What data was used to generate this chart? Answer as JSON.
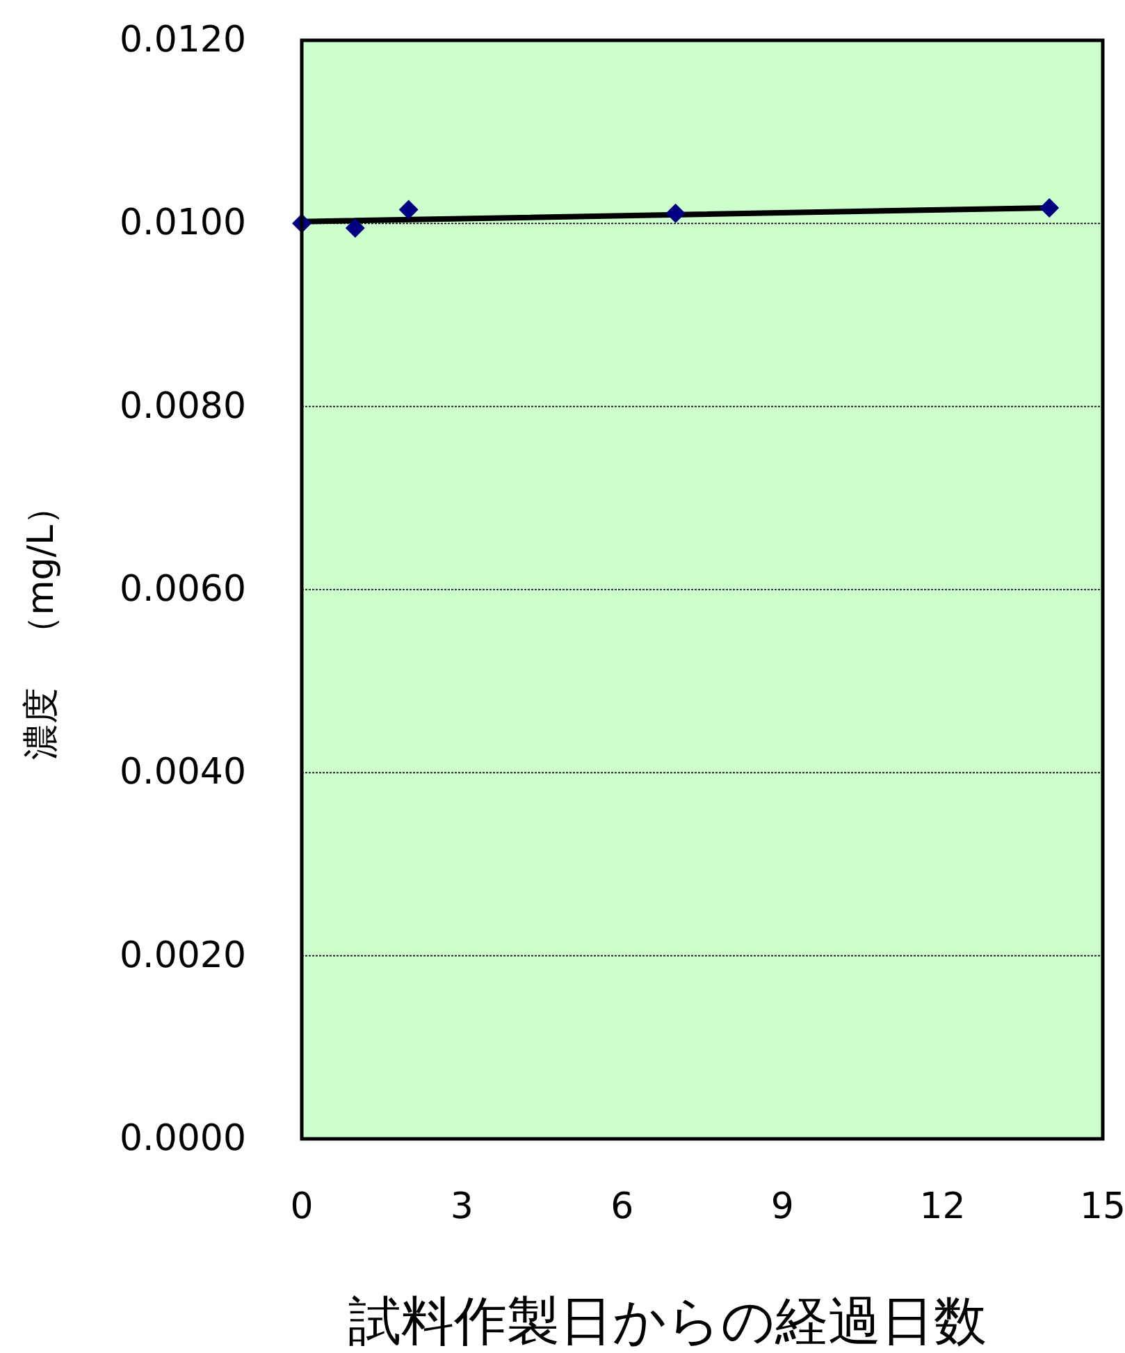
{
  "chart_data": {
    "type": "scatter",
    "xlabel": "試料作製日からの経過日数",
    "ylabel": "濃度　（mg/L）",
    "xlim": [
      0,
      15
    ],
    "xticks": [
      0,
      3,
      6,
      9,
      12,
      15
    ],
    "ylim": [
      0,
      0.012
    ],
    "yticks": [
      {
        "value": 0,
        "label": "0.0000"
      },
      {
        "value": 0.002,
        "label": "0.0020"
      },
      {
        "value": 0.004,
        "label": "0.0040"
      },
      {
        "value": 0.006,
        "label": "0.0060"
      },
      {
        "value": 0.008,
        "label": "0.0080"
      },
      {
        "value": 0.01,
        "label": "0.0100"
      },
      {
        "value": 0.012,
        "label": "0.0120"
      }
    ],
    "grid": "y",
    "series": [
      {
        "type": "line",
        "color": "#000000",
        "x": [
          0,
          14
        ],
        "values": [
          0.01002,
          0.01017
        ],
        "marker": "none",
        "line_style": "solid"
      },
      {
        "color": "#000080",
        "x": [
          0,
          1,
          2,
          7,
          14
        ],
        "values": [
          0.01,
          0.00995,
          0.01015,
          0.01011,
          0.01017
        ],
        "marker": "diamond"
      }
    ]
  }
}
